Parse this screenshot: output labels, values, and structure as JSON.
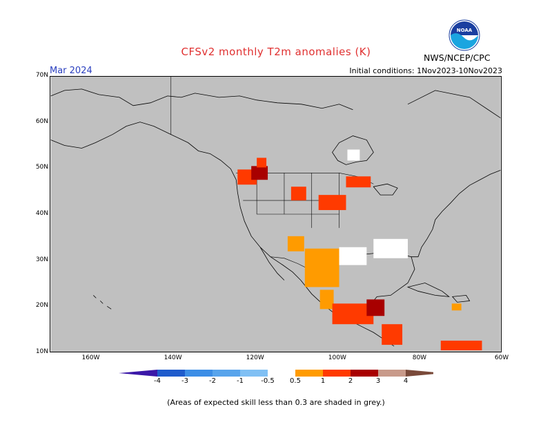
{
  "title": "CFSv2 monthly T2m anomalies (K)",
  "month": "Mar 2024",
  "initial_conditions": "Initial conditions: 1Nov2023-10Nov2023",
  "agency": "NWS/NCEP/CPC",
  "logo_text": "NOAA",
  "footnote": "(Areas of expected skill less than 0.3 are shaded in grey.)",
  "map": {
    "lat_labels": [
      "70N",
      "60N",
      "50N",
      "40N",
      "30N",
      "20N",
      "10N"
    ],
    "lon_labels": [
      "160W",
      "140W",
      "120W",
      "100W",
      "80W",
      "60W"
    ],
    "lat_range": [
      10,
      70
    ],
    "lon_range": [
      -170,
      -60
    ],
    "background_color": "#c0c0c0",
    "land_no_skill_color": "#c0c0c0",
    "warm_regions": [
      {
        "name": "pacific-northwest",
        "lat": 47,
        "lon": -120,
        "category": "1 to 2"
      },
      {
        "name": "mexico",
        "lat": 28,
        "lon": -104,
        "category": "0.5 to 1"
      },
      {
        "name": "central-america",
        "lat": 17,
        "lon": -92,
        "category": "1 to 2"
      },
      {
        "name": "northern-plains",
        "lat": 42,
        "lon": -100,
        "category": "1 to 2"
      },
      {
        "name": "great-lakes",
        "lat": 47,
        "lon": -92,
        "category": "1 to 2"
      }
    ]
  },
  "colorbar": {
    "labels": [
      "-4",
      "-3",
      "-2",
      "-1",
      "-0.5",
      "0.5",
      "1",
      "2",
      "3",
      "4"
    ],
    "colors": [
      "#3b18a8",
      "#1f5ccc",
      "#3c8ee6",
      "#58a4ec",
      "#80c0f4",
      "#ffffff",
      "#ff9b00",
      "#ff3a00",
      "#a80000",
      "#c89a8a",
      "#7a4a3a"
    ]
  }
}
